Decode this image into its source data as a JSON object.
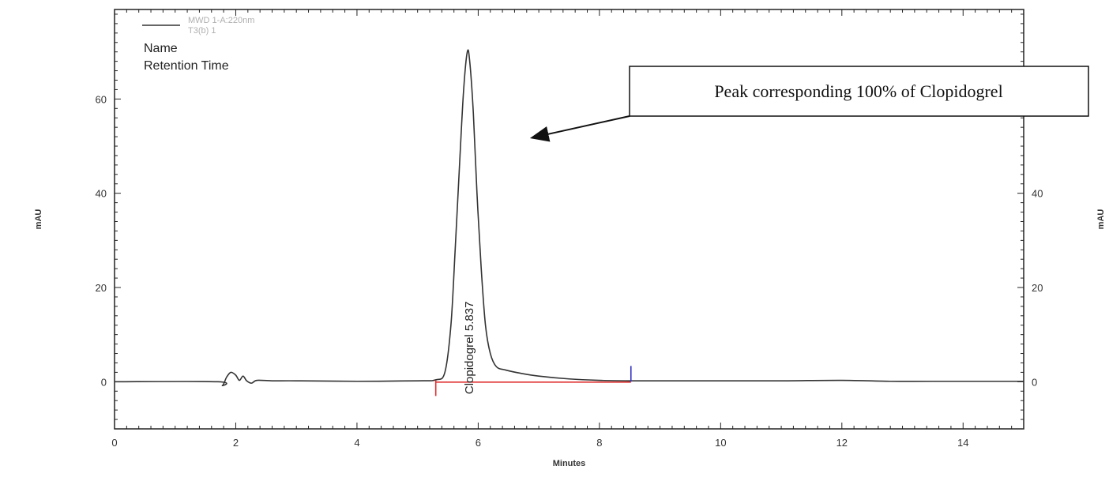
{
  "chart_data": {
    "type": "line",
    "xlabel": "Minutes",
    "ylabel_left": "mAU",
    "ylabel_right": "mAU",
    "xlim": [
      0,
      15
    ],
    "ylim": [
      -10,
      79
    ],
    "x_ticks": [
      0,
      2,
      4,
      6,
      8,
      10,
      12,
      14
    ],
    "y_ticks": [
      0,
      20,
      40,
      60
    ],
    "y_ticks_right": [
      0,
      20,
      40
    ],
    "grid": false,
    "legend": {
      "placement": "top-left",
      "entries": [
        "MWD 1-A:220nm",
        "T3(b) 1"
      ]
    },
    "info_labels": [
      "Name",
      "Retention Time"
    ],
    "series": [
      {
        "name": "MWD 1-A:220nm",
        "x": [
          0,
          1.7,
          1.78,
          1.85,
          1.92,
          2.0,
          2.06,
          2.12,
          2.18,
          2.26,
          2.35,
          2.6,
          3.0,
          4.0,
          5.0,
          5.3,
          5.45,
          5.55,
          5.62,
          5.7,
          5.76,
          5.82,
          5.86,
          5.92,
          5.98,
          6.05,
          6.12,
          6.2,
          6.3,
          6.45,
          6.7,
          7.0,
          7.5,
          8.0,
          8.5,
          9.0,
          10.0,
          11.0,
          12.0,
          12.8,
          13.5,
          15.0
        ],
        "y": [
          0,
          0,
          -0.8,
          1.0,
          2.0,
          1.4,
          0.3,
          1.2,
          0.2,
          -0.3,
          0.3,
          0.2,
          0.2,
          0.1,
          0.2,
          0.4,
          2.0,
          12.0,
          28.0,
          48.0,
          62.0,
          70.0,
          68.0,
          57.0,
          40.0,
          24.0,
          12.0,
          6.0,
          3.2,
          2.5,
          1.8,
          1.2,
          0.6,
          0.3,
          0.2,
          0.2,
          0.2,
          0.2,
          0.3,
          0.1,
          0.1,
          0.1
        ]
      }
    ],
    "peak_annotation": {
      "label": "Clopidogrel  5.837",
      "x": 5.837
    },
    "baseline": {
      "x_start": 5.3,
      "x_end": 8.52,
      "color": "#e03030"
    },
    "integration_start_tick_x": 5.3,
    "integration_end_tick_x": 8.52,
    "callout": {
      "text": "Peak corresponding 100% of  Clopidogrel",
      "target_x": 6.8,
      "target_y": 51.5
    },
    "colors": {
      "trace": "#333333",
      "baseline": "#e03030",
      "end_marker": "#3030c0",
      "frame": "#222222"
    }
  }
}
